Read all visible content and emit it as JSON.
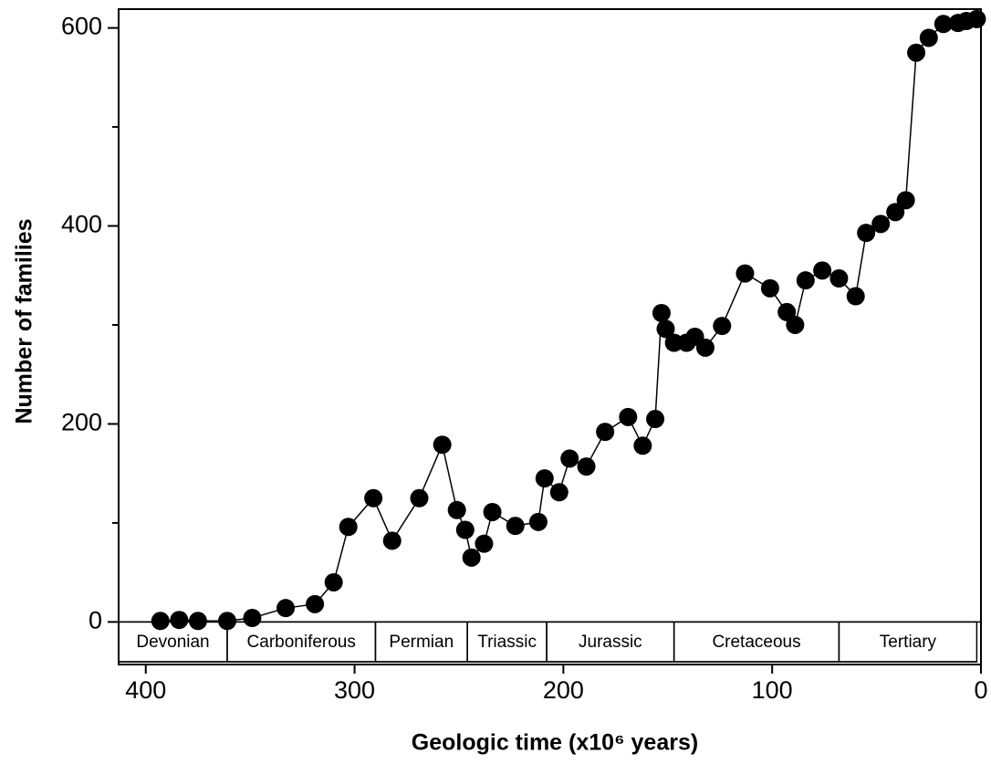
{
  "chart_data": {
    "type": "line",
    "xlabel": "Geologic time (x10⁶ years)",
    "ylabel": "Number of families",
    "xlim": [
      413,
      0
    ],
    "ylim": [
      -43,
      619
    ],
    "xticks": [
      400,
      300,
      200,
      100,
      0
    ],
    "yticks": [
      0,
      200,
      400,
      600
    ],
    "yminor": [
      100,
      300,
      500
    ],
    "color": "#000000",
    "x": [
      393,
      384,
      375,
      361,
      349,
      333,
      319,
      310,
      303,
      291,
      282,
      269,
      258,
      251,
      247,
      244,
      238,
      234,
      223,
      212,
      209,
      202,
      197,
      189,
      180,
      169,
      162,
      156,
      153,
      151,
      147,
      141,
      137,
      132,
      124,
      113,
      101,
      93,
      89,
      84,
      76,
      68,
      60,
      55,
      48,
      41,
      36,
      31,
      25,
      18,
      11,
      7,
      2
    ],
    "values": [
      1,
      2,
      1,
      1,
      4,
      14,
      18,
      40,
      96,
      125,
      82,
      125,
      179,
      113,
      93,
      65,
      79,
      111,
      97,
      101,
      145,
      131,
      165,
      157,
      192,
      207,
      178,
      205,
      312,
      296,
      282,
      282,
      288,
      277,
      299,
      352,
      337,
      313,
      300,
      345,
      355,
      347,
      329,
      393,
      402,
      414,
      426,
      575,
      590,
      604,
      605,
      607,
      609
    ],
    "periods": [
      {
        "name": "Devonian",
        "start": 413,
        "end": 361
      },
      {
        "name": "Carboniferous",
        "start": 361,
        "end": 290
      },
      {
        "name": "Permian",
        "start": 290,
        "end": 246
      },
      {
        "name": "Triassic",
        "start": 246,
        "end": 208
      },
      {
        "name": "Jurassic",
        "start": 208,
        "end": 147
      },
      {
        "name": "Cretaceous",
        "start": 147,
        "end": 68
      },
      {
        "name": "Tertiary",
        "start": 68,
        "end": 2
      }
    ]
  }
}
